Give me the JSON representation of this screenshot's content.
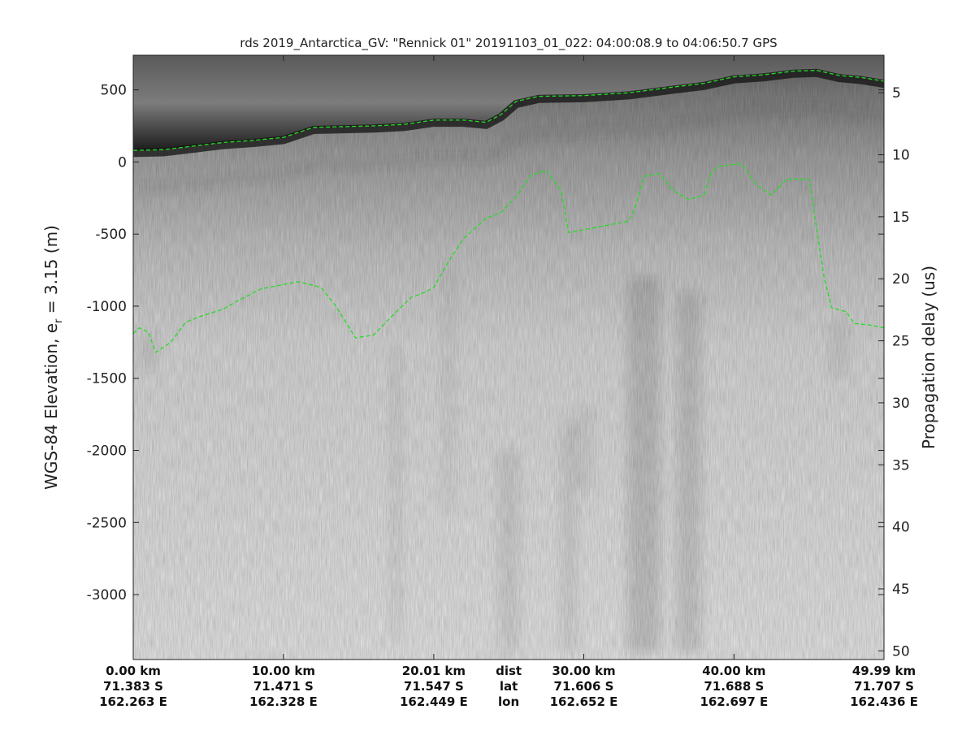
{
  "chart_data": {
    "type": "radar-echogram",
    "title": "rds 2019_Antarctica_GV: \"Rennick 01\"  20191103_01_022: 04:00:08.9 to 04:06:50.7 GPS",
    "ylabel_left": "WGS-84 Elevation, e",
    "ylabel_left_sub": "r",
    "ylabel_left_tail": " = 3.15 (m)",
    "ylabel_right": "Propagation delay (us)",
    "ylim": [
      -3450,
      740
    ],
    "y_ticks_left": [
      {
        "value": 500,
        "label": "500"
      },
      {
        "value": 0,
        "label": "0"
      },
      {
        "value": -500,
        "label": "-500"
      },
      {
        "value": -1000,
        "label": "-1000"
      },
      {
        "value": -1500,
        "label": "-1500"
      },
      {
        "value": -2000,
        "label": "-2000"
      },
      {
        "value": -2500,
        "label": "-2500"
      },
      {
        "value": -3000,
        "label": "-3000"
      }
    ],
    "y_ticks_right": [
      {
        "value": 5,
        "label": "5",
        "elev": 480
      },
      {
        "value": 10,
        "label": "10",
        "elev": 50
      },
      {
        "value": 15,
        "label": "15",
        "elev": -380
      },
      {
        "value": 20,
        "label": "20",
        "elev": -810
      },
      {
        "value": 25,
        "label": "25",
        "elev": -1240
      },
      {
        "value": 30,
        "label": "30",
        "elev": -1670
      },
      {
        "value": 35,
        "label": "35",
        "elev": -2100
      },
      {
        "value": 40,
        "label": "40",
        "elev": -2530
      },
      {
        "value": 45,
        "label": "45",
        "elev": -2960
      },
      {
        "value": 50,
        "label": "50",
        "elev": -3390
      }
    ],
    "xlim": [
      0,
      49.99
    ],
    "x_ticks": [
      {
        "km": 0,
        "dist": "0.00 km",
        "lat": "71.383 S",
        "lon": "162.263 E"
      },
      {
        "km": 10,
        "dist": "10.00 km",
        "lat": "71.471 S",
        "lon": "162.328 E"
      },
      {
        "km": 20.01,
        "dist": "20.01 km",
        "lat": "71.547 S",
        "lon": "162.449 E"
      },
      {
        "km": 30,
        "dist": "30.00 km",
        "lat": "71.606 S",
        "lon": "162.652 E"
      },
      {
        "km": 40,
        "dist": "40.00 km",
        "lat": "71.688 S",
        "lon": "162.697 E"
      },
      {
        "km": 49.99,
        "dist": "49.99 km",
        "lat": "71.707 S",
        "lon": "162.436 E"
      }
    ],
    "row_labels": {
      "km": 25,
      "dist": "dist",
      "lat": "lat",
      "lon": "lon"
    },
    "surface_line": {
      "color": "#22dd22",
      "points": [
        [
          0,
          80
        ],
        [
          2,
          85
        ],
        [
          4,
          110
        ],
        [
          6,
          135
        ],
        [
          8,
          150
        ],
        [
          10,
          170
        ],
        [
          11,
          205
        ],
        [
          12,
          240
        ],
        [
          14,
          245
        ],
        [
          16,
          250
        ],
        [
          18,
          260
        ],
        [
          20,
          290
        ],
        [
          22,
          290
        ],
        [
          23.5,
          275
        ],
        [
          24.5,
          330
        ],
        [
          25.5,
          420
        ],
        [
          27,
          455
        ],
        [
          30,
          460
        ],
        [
          33,
          480
        ],
        [
          36,
          520
        ],
        [
          38,
          545
        ],
        [
          40,
          590
        ],
        [
          42,
          605
        ],
        [
          44,
          630
        ],
        [
          45.5,
          635
        ],
        [
          47,
          600
        ],
        [
          48.5,
          585
        ],
        [
          50,
          560
        ]
      ]
    },
    "bed_line": {
      "color": "#22dd22",
      "points": [
        [
          0,
          -1190
        ],
        [
          0.4,
          -1150
        ],
        [
          1,
          -1180
        ],
        [
          1.5,
          -1320
        ],
        [
          2.5,
          -1250
        ],
        [
          3.5,
          -1110
        ],
        [
          4.5,
          -1070
        ],
        [
          6,
          -1020
        ],
        [
          7,
          -960
        ],
        [
          8.5,
          -880
        ],
        [
          10,
          -850
        ],
        [
          11,
          -830
        ],
        [
          12.5,
          -870
        ],
        [
          13.5,
          -1000
        ],
        [
          14.2,
          -1120
        ],
        [
          14.8,
          -1220
        ],
        [
          16,
          -1200
        ],
        [
          17.5,
          -1040
        ],
        [
          18.5,
          -940
        ],
        [
          19.5,
          -900
        ],
        [
          20,
          -870
        ],
        [
          21,
          -690
        ],
        [
          22,
          -530
        ],
        [
          23.5,
          -390
        ],
        [
          24.5,
          -350
        ],
        [
          25.5,
          -240
        ],
        [
          26.5,
          -90
        ],
        [
          27.5,
          -60
        ],
        [
          28.5,
          -200
        ],
        [
          29,
          -490
        ],
        [
          31,
          -450
        ],
        [
          33,
          -410
        ],
        [
          33.5,
          -290
        ],
        [
          34,
          -100
        ],
        [
          35,
          -80
        ],
        [
          36,
          -200
        ],
        [
          37,
          -260
        ],
        [
          38,
          -230
        ],
        [
          38.5,
          -70
        ],
        [
          39,
          -30
        ],
        [
          40.5,
          -10
        ],
        [
          41.5,
          -160
        ],
        [
          42.5,
          -230
        ],
        [
          43.5,
          -120
        ],
        [
          45,
          -120
        ],
        [
          46,
          -800
        ],
        [
          46.5,
          -1010
        ],
        [
          47.5,
          -1040
        ],
        [
          48,
          -1120
        ],
        [
          49,
          -1130
        ],
        [
          50,
          -1150
        ]
      ]
    }
  }
}
